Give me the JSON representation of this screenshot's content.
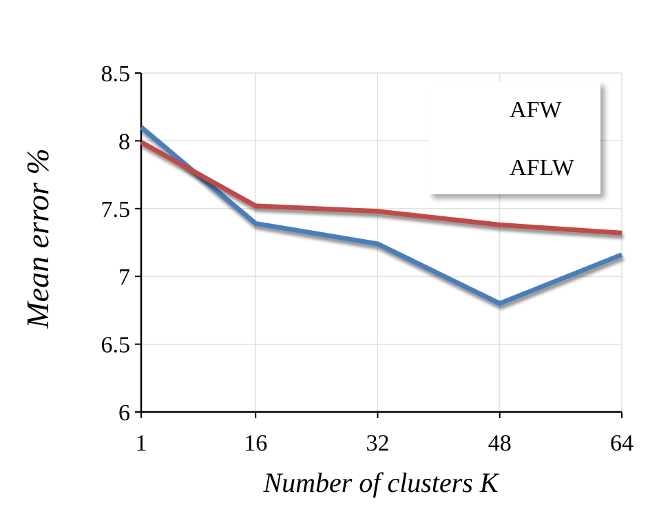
{
  "chart_data": {
    "type": "line",
    "x": [
      1,
      16,
      32,
      48,
      64
    ],
    "series": [
      {
        "name": "AFW",
        "values": [
          8.1,
          7.39,
          7.24,
          6.8,
          7.16
        ],
        "color": "#4a7ebb"
      },
      {
        "name": "AFLW",
        "values": [
          7.99,
          7.52,
          7.48,
          7.38,
          7.32
        ],
        "color": "#be4b48"
      }
    ],
    "xlabel": "Number of clusters K",
    "ylabel": "Mean error %",
    "ylim": [
      6,
      8.5
    ],
    "yticks": [
      "6",
      "6.5",
      "7",
      "7.5",
      "8",
      "8.5"
    ],
    "xticks": [
      "1",
      "16",
      "32",
      "48",
      "64"
    ],
    "grid": true,
    "legend_position": "top-right"
  }
}
